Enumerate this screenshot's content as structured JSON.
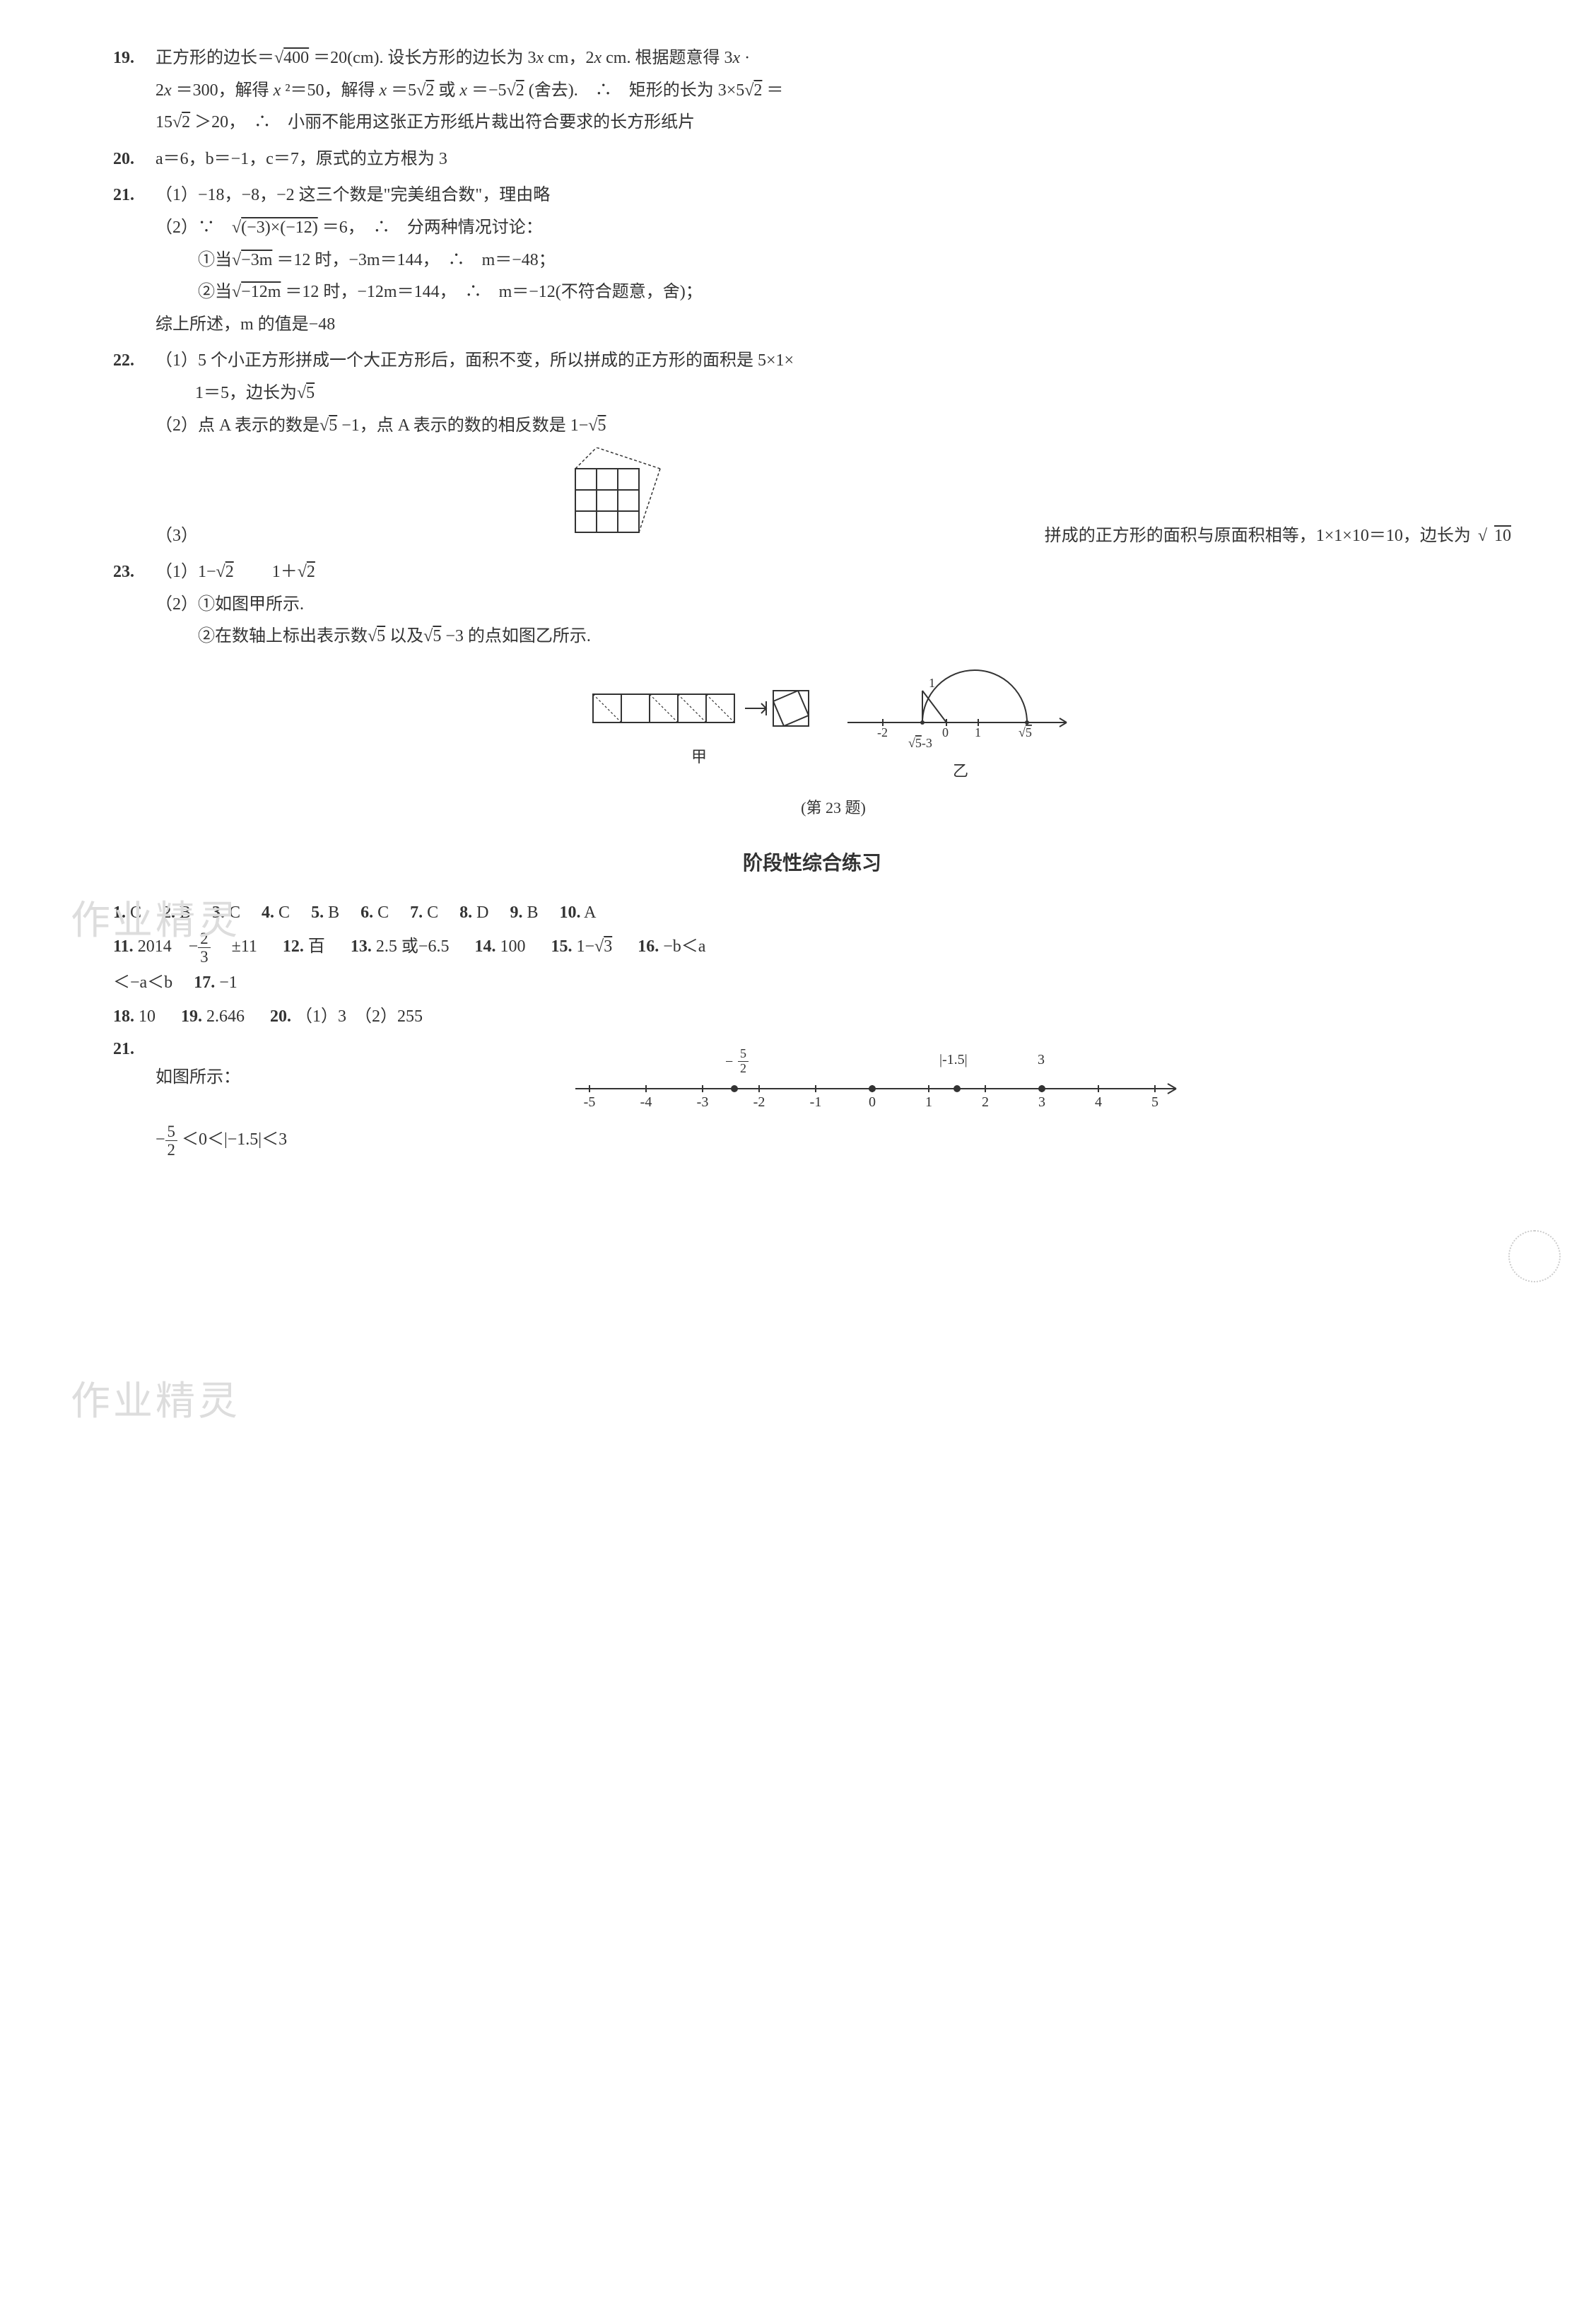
{
  "q19": {
    "num": "19.",
    "line1_a": "正方形的边长＝",
    "line1_root": "400",
    "line1_b": "＝20(cm). 设长方形的边长为 3",
    "line1_c": " cm，2",
    "line1_d": " cm. 根据题意得 3",
    "line1_e": " ·",
    "line2_a": "2",
    "line2_b": "＝300，解得 ",
    "line2_c": "²＝50，解得 ",
    "line2_d": "＝5",
    "line2_root2a": "2",
    "line2_e": "或 ",
    "line2_f": "＝−5",
    "line2_root2b": "2",
    "line2_g": "(舍去).　∴　矩形的长为 3×5",
    "line2_root2c": "2",
    "line2_h": "＝",
    "line3_a": "15",
    "line3_root2": "2",
    "line3_b": "＞20，　∴　小丽不能用这张正方形纸片裁出符合要求的长方形纸片"
  },
  "q20": {
    "num": "20.",
    "text_a": "a＝6，b＝−1，c＝7，原式的立方根为 3"
  },
  "q21": {
    "num": "21.",
    "p1": "（1）−18，−8，−2 这三个数是\"完美组合数\"，理由略",
    "p2_a": "（2）∵　",
    "p2_root": "(−3)×(−12)",
    "p2_b": "＝6，　∴　分两种情况讨论：",
    "c1_a": "①当",
    "c1_root": "−3m",
    "c1_b": "＝12 时，−3m＝144，　∴　m＝−48；",
    "c2_a": "②当",
    "c2_root": "−12m",
    "c2_b": "＝12 时，−12m＝144，　∴　m＝−12(不符合题意，舍)；",
    "c3": "综上所述，m 的值是−48"
  },
  "q22": {
    "num": "22.",
    "p1_a": "（1）5 个小正方形拼成一个大正方形后，面积不变，所以拼成的正方形的面积是 5×1×",
    "p1_b": "1＝5，边长为",
    "p1_root5": "5",
    "p2_a": "（2）点 A 表示的数是",
    "p2_root5a": "5",
    "p2_b": "−1，点 A 表示的数的相反数是 1−",
    "p2_root5b": "5",
    "p3_a": "（3）",
    "p3_b": "拼成的正方形的面积与原面积相等，1×1×10＝10，边长为",
    "p3_root10": "10"
  },
  "q23": {
    "num": "23.",
    "p1_a": "（1）1−",
    "p1_r2a": "2",
    "p1_b": "　　1＋",
    "p1_r2b": "2",
    "p2": "（2）①如图甲所示.",
    "p3_a": "②在数轴上标出表示数",
    "p3_r5a": "5",
    "p3_b": "以及",
    "p3_r5b": "5",
    "p3_c": "−3 的点如图乙所示.",
    "jia": "甲",
    "yi": "乙",
    "caption": "(第 23 题)"
  },
  "section": "阶段性综合练习",
  "mc": [
    {
      "n": "1.",
      "a": "C"
    },
    {
      "n": "2.",
      "a": "B"
    },
    {
      "n": "3.",
      "a": "C"
    },
    {
      "n": "4.",
      "a": "C"
    },
    {
      "n": "5.",
      "a": "B"
    },
    {
      "n": "6.",
      "a": "C"
    },
    {
      "n": "7.",
      "a": "C"
    },
    {
      "n": "8.",
      "a": "D"
    },
    {
      "n": "9.",
      "a": "B"
    },
    {
      "n": "10.",
      "a": "A"
    }
  ],
  "fill": {
    "q11_n": "11.",
    "q11_a": "2014　−",
    "q11_fn": "2",
    "q11_fd": "3",
    "q11_b": "　±11",
    "q12_n": "12.",
    "q12": "百",
    "q13_n": "13.",
    "q13": "2.5 或−6.5",
    "q14_n": "14.",
    "q14": "100",
    "q15_n": "15.",
    "q15_a": "1−",
    "q15_r3": "3",
    "q16_n": "16.",
    "q16_a": "−b＜a",
    "q16_b": "＜−a＜b",
    "q17_n": "17.",
    "q17": "−1",
    "q18_n": "18.",
    "q18": "10",
    "q19_n": "19.",
    "q19": "2.646",
    "q20_n": "20.",
    "q20": "（1）3　（2）255"
  },
  "q21b": {
    "num": "21.",
    "label": "如图所示：",
    "ticks": [
      "-5",
      "-4",
      "-3",
      "-2",
      "-1",
      "0",
      "1",
      "2",
      "3",
      "4",
      "5"
    ],
    "top_frac_neg": "−",
    "top_frac_n": "5",
    "top_frac_d": "2",
    "top_abs": "|-1.5|",
    "top_3": "3",
    "final_a": "−",
    "final_fn": "5",
    "final_fd": "2",
    "final_b": "＜0＜|−1.5|＜3"
  },
  "numberline_yi": {
    "ticks": [
      "-2",
      "0",
      "1"
    ],
    "top1": "1",
    "label_sqrt5": "5",
    "label_sqrt5m3_r": "5",
    "label_sqrt5m3_s": "-3"
  },
  "watermark": "作业精灵",
  "colors": {
    "text": "#333333",
    "light": "#dddddd",
    "bg": "#ffffff"
  }
}
